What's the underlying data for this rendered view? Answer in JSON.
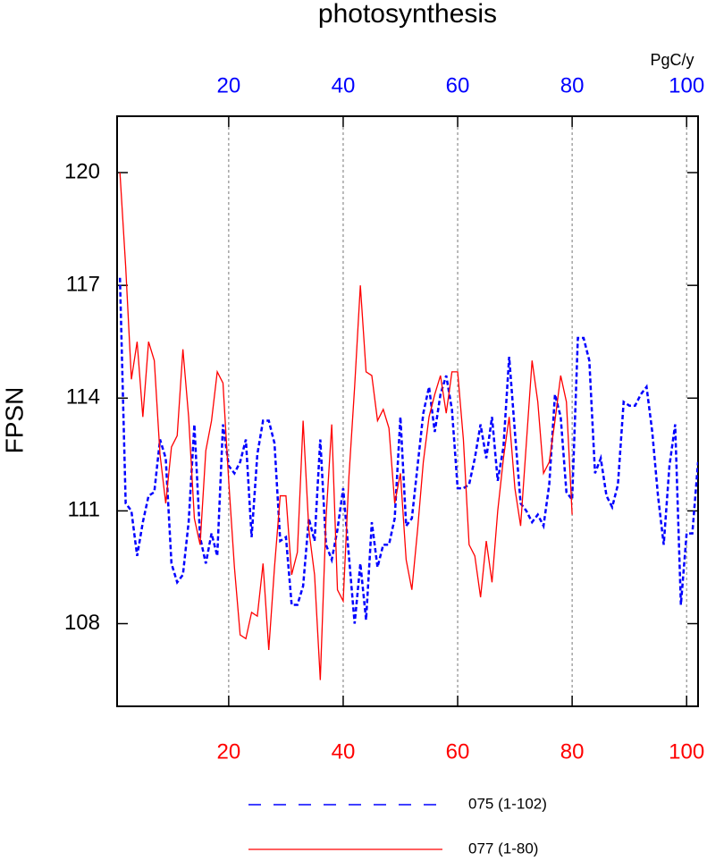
{
  "chart_data": {
    "type": "line",
    "title": "photosynthesis",
    "ylabel": "FPSN",
    "x2_unit": "PgC/y",
    "xlim": [
      0.5,
      102
    ],
    "ylim": [
      105.8,
      121.5
    ],
    "xticks": [
      20,
      40,
      60,
      80,
      100
    ],
    "x2ticks": [
      20,
      40,
      60,
      80,
      100
    ],
    "yticks": [
      108,
      111,
      114,
      117,
      120
    ],
    "xtick_color": "#ff0000",
    "x2tick_color": "#0000ff",
    "grid": true,
    "series": [
      {
        "name": "075 (1-102)",
        "color": "#0000ff",
        "dashed": true,
        "x": [
          1,
          2,
          3,
          4,
          5,
          6,
          7,
          8,
          9,
          10,
          11,
          12,
          13,
          14,
          15,
          16,
          17,
          18,
          19,
          20,
          21,
          22,
          23,
          24,
          25,
          26,
          27,
          28,
          29,
          30,
          31,
          32,
          33,
          34,
          35,
          36,
          37,
          38,
          39,
          40,
          41,
          42,
          43,
          44,
          45,
          46,
          47,
          48,
          49,
          50,
          51,
          52,
          53,
          54,
          55,
          56,
          57,
          58,
          59,
          60,
          61,
          62,
          63,
          64,
          65,
          66,
          67,
          68,
          69,
          70,
          71,
          72,
          73,
          74,
          75,
          76,
          77,
          78,
          79,
          80,
          81,
          82,
          83,
          84,
          85,
          86,
          87,
          88,
          89,
          90,
          91,
          92,
          93,
          94,
          95,
          96,
          97,
          98,
          99,
          100,
          101,
          102
        ],
        "values": [
          117.2,
          111.2,
          111,
          109.8,
          110.7,
          111.4,
          111.5,
          112.9,
          112.4,
          109.6,
          109.1,
          109.3,
          110.7,
          113.3,
          110.3,
          109.6,
          110.4,
          109.8,
          113.3,
          112.2,
          112,
          112.3,
          112.9,
          110.3,
          112.5,
          113.4,
          113.4,
          112.8,
          110.2,
          110.3,
          108.5,
          108.5,
          109,
          110.8,
          110.2,
          112.9,
          110.1,
          109.7,
          110.5,
          111.6,
          109.8,
          108,
          109.6,
          108.1,
          110.7,
          109.5,
          110.1,
          110.1,
          110.8,
          113.5,
          110.6,
          110.8,
          112.2,
          113.6,
          114.3,
          113.1,
          114.1,
          114.6,
          113.7,
          111.6,
          111.6,
          111.7,
          112.4,
          113.3,
          112.4,
          113.5,
          111.8,
          112.7,
          115.1,
          113.1,
          111.2,
          111,
          110.7,
          110.9,
          110.6,
          111.7,
          114.1,
          113.5,
          111.5,
          111.3,
          115.6,
          115.6,
          115,
          112,
          112.4,
          111.4,
          111.1,
          111.7,
          113.9,
          113.8,
          113.8,
          114.1,
          114.3,
          113.1,
          111.4,
          110.1,
          112.2,
          113.3,
          108.5,
          110.4,
          110.4,
          112.3
        ]
      },
      {
        "name": "077 (1-80)",
        "color": "#ff0000",
        "dashed": false,
        "x": [
          1,
          2,
          3,
          4,
          5,
          6,
          7,
          8,
          9,
          10,
          11,
          12,
          13,
          14,
          15,
          16,
          17,
          18,
          19,
          20,
          21,
          22,
          23,
          24,
          25,
          26,
          27,
          28,
          29,
          30,
          31,
          32,
          33,
          34,
          35,
          36,
          37,
          38,
          39,
          40,
          41,
          42,
          43,
          44,
          45,
          46,
          47,
          48,
          49,
          50,
          51,
          52,
          53,
          54,
          55,
          56,
          57,
          58,
          59,
          60,
          61,
          62,
          63,
          64,
          65,
          66,
          67,
          68,
          69,
          70,
          71,
          72,
          73,
          74,
          75,
          76,
          77,
          78,
          79,
          80
        ],
        "values": [
          120,
          117.5,
          114.5,
          115.5,
          113.5,
          115.5,
          115,
          112.5,
          111.2,
          112.7,
          113,
          115.3,
          113.5,
          110.8,
          110.1,
          112.6,
          113.4,
          114.7,
          114.4,
          111.8,
          109.5,
          107.7,
          107.6,
          108.3,
          108.2,
          109.6,
          107.3,
          109.5,
          111.4,
          111.4,
          109.3,
          109.9,
          113.4,
          110.5,
          109.3,
          106.5,
          110.8,
          113.3,
          108.9,
          108.6,
          111.9,
          114.3,
          117,
          114.7,
          114.6,
          113.4,
          113.7,
          113.2,
          111.2,
          112,
          109.7,
          108.9,
          110.5,
          112.3,
          113.5,
          114.1,
          114.6,
          113.6,
          114.7,
          114.7,
          112.9,
          110.1,
          109.8,
          108.7,
          110.2,
          109.1,
          111,
          112.4,
          113.5,
          111.6,
          110.6,
          112.8,
          115,
          113.9,
          112,
          112.3,
          113.4,
          114.6,
          113.9,
          110.9
        ]
      }
    ]
  }
}
